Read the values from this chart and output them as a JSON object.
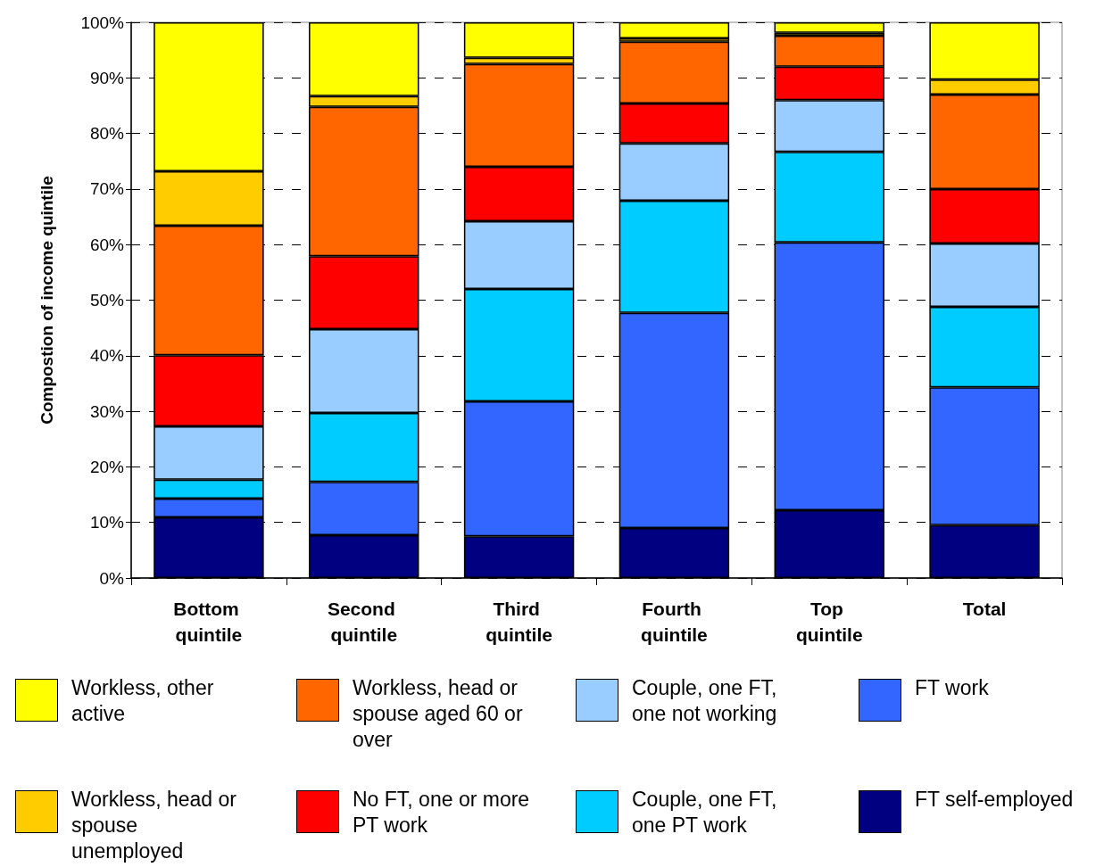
{
  "chart_data": {
    "type": "bar",
    "stacked": true,
    "ylabel": "Compostion of income quintile",
    "categories": [
      "Bottom quintile",
      "Second quintile",
      "Third quintile",
      "Fourth quintile",
      "Top quintile",
      "Total"
    ],
    "series": [
      {
        "name": "FT self-employed",
        "color": "#000080",
        "values": [
          10.9,
          7.7,
          7.5,
          9.0,
          12.2,
          9.5
        ]
      },
      {
        "name": "FT work",
        "color": "#3366ff",
        "values": [
          3.4,
          9.6,
          24.3,
          38.7,
          48.2,
          24.8
        ]
      },
      {
        "name": "Couple, one FT, one PT work",
        "color": "#00ccff",
        "values": [
          3.4,
          12.4,
          20.2,
          20.2,
          16.3,
          14.5
        ]
      },
      {
        "name": "Couple, one FT, one not working",
        "color": "#99ccff",
        "values": [
          9.6,
          15.1,
          12.2,
          10.3,
          9.3,
          11.4
        ]
      },
      {
        "name": "No FT, one or more PT work",
        "color": "#ff0000",
        "values": [
          12.8,
          13.1,
          9.8,
          7.2,
          6.0,
          9.8
        ]
      },
      {
        "name": "Workless, head or spouse aged 60 or over",
        "color": "#ff6600",
        "values": [
          23.3,
          26.9,
          18.5,
          11.1,
          5.6,
          17.0
        ]
      },
      {
        "name": "Workless, head or spouse unemployed",
        "color": "#ffcc00",
        "values": [
          9.8,
          1.9,
          1.1,
          0.6,
          0.5,
          2.7
        ]
      },
      {
        "name": "Workless, other active",
        "color": "#ffff00",
        "values": [
          26.8,
          13.3,
          6.4,
          2.9,
          1.9,
          10.3
        ]
      }
    ],
    "ylim": [
      0,
      100
    ],
    "yticks": [
      {
        "value": 0,
        "label": "0%"
      },
      {
        "value": 10,
        "label": "10%"
      },
      {
        "value": 20,
        "label": "20%"
      },
      {
        "value": 30,
        "label": "30%"
      },
      {
        "value": 40,
        "label": "40%"
      },
      {
        "value": 50,
        "label": "50%"
      },
      {
        "value": 60,
        "label": "60%"
      },
      {
        "value": 70,
        "label": "70%"
      },
      {
        "value": 80,
        "label": "80%"
      },
      {
        "value": 90,
        "label": "90%"
      },
      {
        "value": 100,
        "label": "100%"
      }
    ],
    "grid": "y",
    "legend": "bottom"
  }
}
